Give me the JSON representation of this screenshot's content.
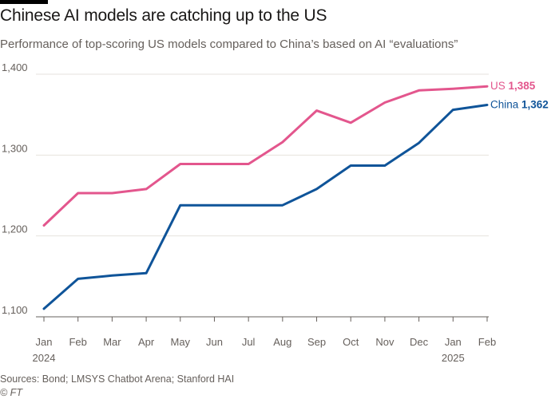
{
  "header": {
    "title": "Chinese AI models are catching up to the US",
    "subtitle": "Performance of top-scoring US models compared to China’s based on AI “evaluations”"
  },
  "footer": {
    "sources": "Sources: Bond; LMSYS Chatbot Arena; Stanford HAI",
    "copyright": "© FT"
  },
  "chart_data": {
    "type": "line",
    "title": "Chinese AI models are catching up to the US",
    "subtitle": "Performance of top-scoring US models compared to China’s based on AI “evaluations”",
    "xlabel": "",
    "ylabel": "",
    "categories": [
      "Jan",
      "Feb",
      "Mar",
      "Apr",
      "May",
      "Jun",
      "Jul",
      "Aug",
      "Sep",
      "Oct",
      "Nov",
      "Dec",
      "Jan",
      "Feb"
    ],
    "year_labels": [
      {
        "index": 0,
        "label": "2024"
      },
      {
        "index": 12,
        "label": "2025"
      }
    ],
    "ylim": [
      1100,
      1400
    ],
    "yticks": [
      1100,
      1200,
      1300,
      1400
    ],
    "ytick_labels": [
      "1,100",
      "1,200",
      "1,300",
      "1,400"
    ],
    "grid": true,
    "series": [
      {
        "name": "US",
        "color": "#e3568d",
        "values": [
          1213,
          1253,
          1253,
          1258,
          1289,
          1289,
          1289,
          1316,
          1355,
          1340,
          1365,
          1380,
          1382,
          1385
        ],
        "end_label_name": "US",
        "end_label_value": "1,385"
      },
      {
        "name": "China",
        "color": "#0f5499",
        "values": [
          1110,
          1147,
          1151,
          1154,
          1238,
          1238,
          1238,
          1238,
          1258,
          1287,
          1287,
          1315,
          1356,
          1362
        ],
        "end_label_name": "China",
        "end_label_value": "1,362"
      }
    ],
    "gridline_color": "#e6e2dd",
    "axis_color": "#66605c"
  }
}
